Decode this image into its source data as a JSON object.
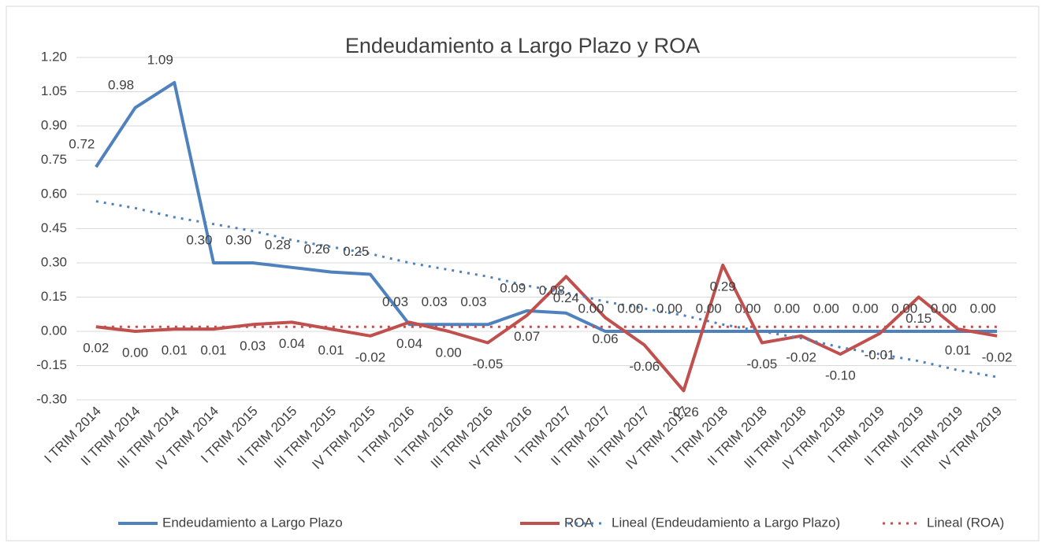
{
  "chart_data": {
    "type": "line",
    "title": "Endeudamiento a Largo Plazo y ROA",
    "categories": [
      "I TRIM 2014",
      "II TRIM 2014",
      "III TRIM 2014",
      "IV TRIM 2014",
      "I TRIM 2015",
      "II TRIM 2015",
      "III TRIM 2015",
      "IV TRIM 2015",
      "I TRIM 2016",
      "II TRIM 2016",
      "III TRIM 2016",
      "IV TRIM 2016",
      "I TRIM 2017",
      "II TRIM 2017",
      "III TRIM 2017",
      "IV TRIM 2017",
      "I TRIM 2018",
      "II TRIM 2018",
      "III TRIM 2018",
      "IV TRIM 2018",
      "I TRIM 2019",
      "II TRIM 2019",
      "III TRIM 2019",
      "IV TRIM 2019"
    ],
    "series": [
      {
        "name": "Endeudamiento a Largo Plazo",
        "color": "#4f81bd",
        "style": "solid",
        "values": [
          0.72,
          0.98,
          1.09,
          0.3,
          0.3,
          0.28,
          0.26,
          0.25,
          0.03,
          0.03,
          0.03,
          0.09,
          0.08,
          0.0,
          0.0,
          0.0,
          0.0,
          0.0,
          0.0,
          0.0,
          0.0,
          0.0,
          0.0,
          0.0
        ],
        "value_labels": [
          "0.72",
          "0.98",
          "1.09",
          "0.30",
          "0.30",
          "0.28",
          "0.26",
          "0.25",
          "0.03",
          "0.03",
          "0.03",
          "0.09",
          "0.08",
          "0.00",
          "0.00",
          "0.00",
          "0.00",
          "0.00",
          "0.00",
          "0.00",
          "0.00",
          "0.00",
          "0.00",
          "0.00"
        ]
      },
      {
        "name": "ROA",
        "color": "#c0504d",
        "style": "solid",
        "values": [
          0.02,
          0.0,
          0.01,
          0.01,
          0.03,
          0.04,
          0.01,
          -0.02,
          0.04,
          0.0,
          -0.05,
          0.07,
          0.24,
          0.06,
          -0.06,
          -0.26,
          0.29,
          -0.05,
          -0.02,
          -0.1,
          -0.01,
          0.15,
          0.01,
          -0.02
        ],
        "value_labels": [
          "0.02",
          "0.00",
          "0.01",
          "0.01",
          "0.03",
          "0.04",
          "0.01",
          "-0.02",
          "0.04",
          "0.00",
          "-0.05",
          "0.07",
          "0.24",
          "0.06",
          "-0.06",
          "-0.26",
          "0.29",
          "-0.05",
          "-0.02",
          "-0.10",
          "-0.01",
          "0.15",
          "0.01",
          "-0.02"
        ]
      },
      {
        "name": "Lineal (Endeudamiento a Largo Plazo)",
        "color": "#4f81bd",
        "style": "dotted",
        "values": [
          0.57,
          0.54,
          0.5,
          0.47,
          0.44,
          0.4,
          0.37,
          0.34,
          0.3,
          0.27,
          0.24,
          0.2,
          0.17,
          0.13,
          0.1,
          0.07,
          0.03,
          0.0,
          -0.03,
          -0.07,
          -0.1,
          -0.13,
          -0.17,
          -0.2
        ]
      },
      {
        "name": "Lineal (ROA)",
        "color": "#c0504d",
        "style": "dotted",
        "values": [
          0.02,
          0.02,
          0.02,
          0.02,
          0.02,
          0.02,
          0.02,
          0.02,
          0.02,
          0.02,
          0.02,
          0.02,
          0.02,
          0.02,
          0.02,
          0.02,
          0.02,
          0.02,
          0.02,
          0.02,
          0.02,
          0.02,
          0.02,
          0.02
        ]
      }
    ],
    "ylim": [
      -0.3,
      1.2
    ],
    "yticks": [
      {
        "value": -0.3,
        "label": "-0.30"
      },
      {
        "value": -0.15,
        "label": "-0.15"
      },
      {
        "value": 0,
        "label": "0.00"
      },
      {
        "value": 0.15,
        "label": "0.15"
      },
      {
        "value": 0.3,
        "label": "0.30"
      },
      {
        "value": 0.45,
        "label": "0.45"
      },
      {
        "value": 0.6,
        "label": "0.60"
      },
      {
        "value": 0.75,
        "label": "0.75"
      },
      {
        "value": 0.9,
        "label": "0.90"
      },
      {
        "value": 1.05,
        "label": "1.05"
      },
      {
        "value": 1.2,
        "label": "1.20"
      }
    ],
    "grid": true,
    "legend": "bottom"
  }
}
